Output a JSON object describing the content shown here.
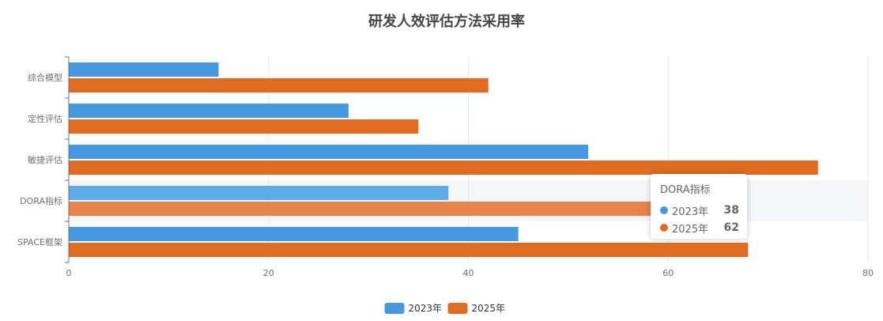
{
  "chart_data": {
    "type": "bar",
    "orientation": "horizontal",
    "title": "研发人效评估方法采用率",
    "categories": [
      "SPACE框架",
      "DORA指标",
      "敏捷评估",
      "定性评估",
      "综合模型"
    ],
    "series": [
      {
        "name": "2023年",
        "values": [
          45,
          38,
          52,
          28,
          15
        ],
        "color": "#4499e0"
      },
      {
        "name": "2025年",
        "values": [
          68,
          62,
          75,
          35,
          42
        ],
        "color": "#e06c22"
      }
    ],
    "xlim": [
      0,
      80
    ],
    "xticks": [
      0,
      20,
      40,
      60,
      80
    ],
    "grid": true,
    "legend_position": "bottom-center",
    "highlighted_category": "DORA指标"
  },
  "tooltip": {
    "title": "DORA指标",
    "rows": [
      {
        "name": "2023年",
        "value": "38",
        "color": "#4499e0"
      },
      {
        "name": "2025年",
        "value": "62",
        "color": "#e06c22"
      }
    ]
  }
}
